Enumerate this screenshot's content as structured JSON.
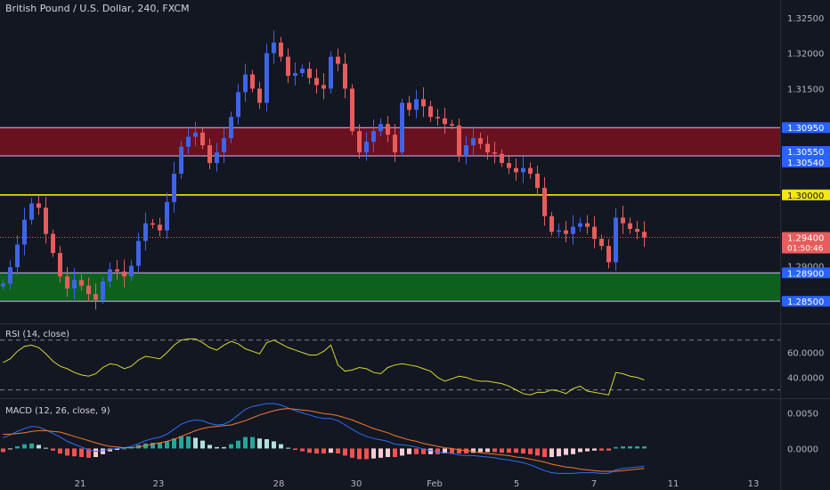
{
  "title": "British Pound / U.S. Dollar, 240, FXCM",
  "colors": {
    "background": "#131722",
    "bull": "#3f64e8",
    "bear": "#e85c5c",
    "doji": "#c8a63a",
    "resistance_zone": "#7a1020",
    "support_zone": "#0d6e1c",
    "zone_border": "#d9b7f7",
    "key_level": "#f5e611",
    "current_price_line": "#e85c5c",
    "rsi_line": "#d8d630",
    "macd_line": "#2d6ff2",
    "signal_line": "#f2782d",
    "hist_pos": "#26a69a",
    "hist_neg": "#ef5350"
  },
  "chart_data": [
    {
      "type": "candlestick",
      "title": "British Pound / U.S. Dollar, 240, FXCM",
      "ylim": [
        1.282,
        1.3275
      ],
      "y_ticks": [
        "1.32500",
        "1.32000",
        "1.31500",
        "1.29000"
      ],
      "x_ticks": [
        "21",
        "23",
        "28",
        "30",
        "Feb",
        "5",
        "7",
        "11",
        "13"
      ],
      "levels": [
        {
          "label": "1.30950",
          "value": 1.3095
        },
        {
          "label": "1.30550",
          "value": 1.3055
        },
        {
          "label": "1.30540",
          "value": 1.3054
        },
        {
          "label": "1.30000",
          "value": 1.3
        },
        {
          "label": "1.28900",
          "value": 1.289
        },
        {
          "label": "1.28500",
          "value": 1.285
        }
      ],
      "zones": [
        {
          "kind": "resistance",
          "from": 1.3055,
          "to": 1.3095
        },
        {
          "kind": "support",
          "from": 1.285,
          "to": 1.289
        }
      ],
      "current_price": {
        "label": "1.29400",
        "value": 1.294,
        "countdown": "01:50:46"
      },
      "closes": [
        1.2875,
        1.2898,
        1.293,
        1.2965,
        1.2988,
        1.2982,
        1.2945,
        1.2918,
        1.2885,
        1.2868,
        1.288,
        1.2872,
        1.286,
        1.2852,
        1.2878,
        1.2895,
        1.2892,
        1.2885,
        1.29,
        1.2935,
        1.296,
        1.2958,
        1.295,
        1.299,
        1.303,
        1.3068,
        1.3082,
        1.3088,
        1.307,
        1.3045,
        1.306,
        1.308,
        1.311,
        1.3145,
        1.317,
        1.315,
        1.313,
        1.32,
        1.3215,
        1.3195,
        1.3168,
        1.3172,
        1.3178,
        1.3165,
        1.3155,
        1.315,
        1.3195,
        1.3185,
        1.315,
        1.309,
        1.306,
        1.3075,
        1.309,
        1.31,
        1.3085,
        1.306,
        1.313,
        1.312,
        1.3135,
        1.3125,
        1.311,
        1.3108,
        1.31,
        1.3098,
        1.3055,
        1.307,
        1.308,
        1.3072,
        1.306,
        1.3058,
        1.3045,
        1.3038,
        1.3032,
        1.3038,
        1.303,
        1.301,
        1.297,
        1.2948,
        1.295,
        1.2945,
        1.2955,
        1.296,
        1.2955,
        1.2938,
        1.2928,
        1.2905,
        1.2968,
        1.296,
        1.2952,
        1.2948,
        1.294
      ],
      "rsi": {
        "label": "RSI (14, close)",
        "ylim": [
          24,
          82
        ],
        "y_ticks": [
          "60.0000",
          "40.0000"
        ],
        "levels": [
          70,
          30
        ],
        "values": [
          52,
          55,
          61,
          65,
          66,
          64,
          59,
          53,
          49,
          47,
          44,
          42,
          41,
          43,
          48,
          51,
          50,
          47,
          49,
          54,
          57,
          56,
          55,
          60,
          66,
          70,
          71,
          71,
          68,
          64,
          62,
          66,
          69,
          67,
          63,
          61,
          59,
          68,
          70,
          67,
          64,
          62,
          60,
          58,
          58,
          61,
          66,
          50,
          45,
          46,
          48,
          47,
          44,
          43,
          48,
          50,
          51,
          50,
          49,
          47,
          45,
          40,
          37,
          39,
          41,
          40,
          38,
          37,
          37,
          36,
          35,
          33,
          30,
          27,
          26,
          28,
          28,
          30,
          29,
          27,
          31,
          33,
          29,
          28,
          27,
          26,
          44,
          43,
          41,
          40,
          38
        ]
      },
      "macd": {
        "label": "MACD (12, 26, close, 9)",
        "ylim": [
          -0.0037,
          0.0068
        ],
        "y_ticks": [
          "0.0050",
          "0.0000"
        ],
        "macd": [
          0.0015,
          0.0019,
          0.0024,
          0.0028,
          0.0031,
          0.003,
          0.0026,
          0.0021,
          0.0016,
          0.001,
          0.0006,
          0.0002,
          -0.0002,
          -0.0004,
          -0.0003,
          -0.0001,
          0.0,
          0.0001,
          0.0003,
          0.0007,
          0.0011,
          0.0014,
          0.0016,
          0.002,
          0.0027,
          0.0034,
          0.0038,
          0.004,
          0.0039,
          0.0035,
          0.0033,
          0.0034,
          0.0039,
          0.0047,
          0.0055,
          0.0059,
          0.0061,
          0.0063,
          0.0063,
          0.0061,
          0.0057,
          0.0053,
          0.005,
          0.0047,
          0.0044,
          0.0042,
          0.0042,
          0.0039,
          0.0033,
          0.0027,
          0.0021,
          0.0017,
          0.0014,
          0.0012,
          0.001,
          0.0006,
          0.0005,
          0.0004,
          0.0002,
          -0.0001,
          -0.0003,
          -0.0005,
          -0.0006,
          -0.0007,
          -0.0009,
          -0.001,
          -0.001,
          -0.0011,
          -0.0012,
          -0.0013,
          -0.0015,
          -0.0016,
          -0.0018,
          -0.002,
          -0.0023,
          -0.0027,
          -0.0031,
          -0.0034,
          -0.0035,
          -0.0035,
          -0.0035,
          -0.0034,
          -0.0034,
          -0.0034,
          -0.0035,
          -0.0035,
          -0.003,
          -0.0028,
          -0.0027,
          -0.0026,
          -0.0025
        ],
        "signal": [
          0.002,
          0.002,
          0.0021,
          0.0022,
          0.0024,
          0.0025,
          0.0025,
          0.0024,
          0.0023,
          0.002,
          0.0017,
          0.0014,
          0.0011,
          0.0008,
          0.0005,
          0.0003,
          0.0002,
          0.0001,
          0.0001,
          0.0002,
          0.0004,
          0.0006,
          0.0008,
          0.001,
          0.0013,
          0.0017,
          0.0021,
          0.0025,
          0.0028,
          0.003,
          0.0031,
          0.0032,
          0.0033,
          0.0036,
          0.0039,
          0.0043,
          0.0047,
          0.005,
          0.0053,
          0.0055,
          0.0056,
          0.0055,
          0.0054,
          0.0053,
          0.0051,
          0.0049,
          0.0048,
          0.0046,
          0.0043,
          0.004,
          0.0036,
          0.0032,
          0.0028,
          0.0025,
          0.0022,
          0.0018,
          0.0015,
          0.0012,
          0.001,
          0.0007,
          0.0005,
          0.0003,
          0.0001,
          0.0,
          -0.0002,
          -0.0003,
          -0.0004,
          -0.0006,
          -0.0007,
          -0.0008,
          -0.0009,
          -0.001,
          -0.0012,
          -0.0013,
          -0.0015,
          -0.0017,
          -0.0019,
          -0.0022,
          -0.0024,
          -0.0026,
          -0.0027,
          -0.0029,
          -0.003,
          -0.0031,
          -0.0032,
          -0.0032,
          -0.0032,
          -0.0031,
          -0.003,
          -0.0029,
          -0.0028
        ]
      }
    }
  ]
}
